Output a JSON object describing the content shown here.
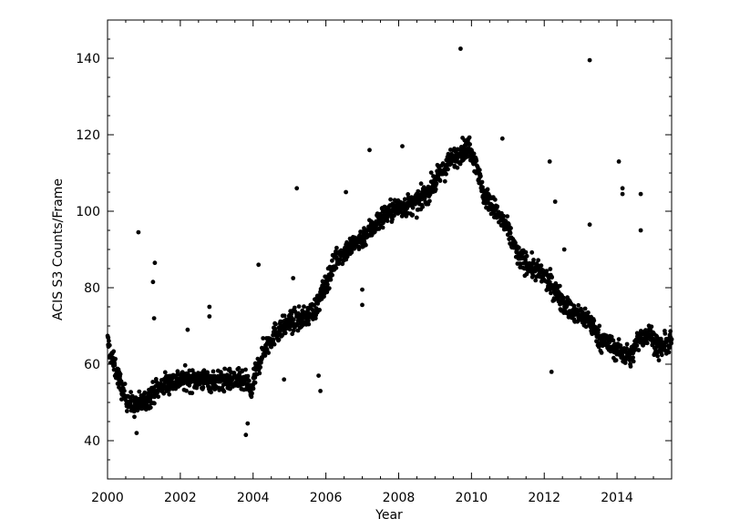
{
  "chart_data": {
    "type": "scatter",
    "title": "",
    "xlabel": "Year",
    "ylabel": "ACIS S3 Counts/Frame",
    "xlim": [
      2000,
      2015.5
    ],
    "ylim": [
      30,
      150
    ],
    "x_ticks": [
      2000,
      2002,
      2004,
      2006,
      2008,
      2010,
      2012,
      2014
    ],
    "y_ticks": [
      40,
      60,
      80,
      100,
      120,
      140
    ],
    "x_tick_labels": [
      "2000",
      "2002",
      "2004",
      "2006",
      "2008",
      "2010",
      "2012",
      "2014"
    ],
    "y_tick_labels": [
      "40",
      "60",
      "80",
      "100",
      "120",
      "140"
    ],
    "grid": false,
    "legend": "none",
    "point_color": "#000000",
    "trend": [
      [
        2000.0,
        66
      ],
      [
        2000.1,
        62
      ],
      [
        2000.25,
        58
      ],
      [
        2000.45,
        52
      ],
      [
        2000.7,
        49
      ],
      [
        2001.0,
        50
      ],
      [
        2001.3,
        53
      ],
      [
        2001.6,
        55
      ],
      [
        2002.0,
        56
      ],
      [
        2002.5,
        56
      ],
      [
        2003.0,
        55.5
      ],
      [
        2003.5,
        56
      ],
      [
        2003.85,
        55
      ],
      [
        2003.95,
        52
      ],
      [
        2004.05,
        57
      ],
      [
        2004.3,
        64
      ],
      [
        2004.6,
        68
      ],
      [
        2005.0,
        71
      ],
      [
        2005.4,
        72
      ],
      [
        2005.75,
        75
      ],
      [
        2006.0,
        81
      ],
      [
        2006.3,
        88
      ],
      [
        2006.6,
        90
      ],
      [
        2007.0,
        93
      ],
      [
        2007.3,
        96
      ],
      [
        2007.6,
        99
      ],
      [
        2008.0,
        101
      ],
      [
        2008.5,
        102
      ],
      [
        2008.8,
        105
      ],
      [
        2009.1,
        109
      ],
      [
        2009.4,
        113
      ],
      [
        2009.7,
        115.5
      ],
      [
        2009.95,
        117
      ],
      [
        2010.15,
        112
      ],
      [
        2010.3,
        105
      ],
      [
        2010.6,
        101
      ],
      [
        2011.0,
        95
      ],
      [
        2011.3,
        88
      ],
      [
        2011.7,
        85
      ],
      [
        2012.0,
        83
      ],
      [
        2012.4,
        78
      ],
      [
        2012.8,
        73
      ],
      [
        2013.2,
        72
      ],
      [
        2013.5,
        67
      ],
      [
        2013.8,
        65
      ],
      [
        2014.1,
        63
      ],
      [
        2014.4,
        62
      ],
      [
        2014.6,
        67
      ],
      [
        2014.9,
        68
      ],
      [
        2015.15,
        64
      ],
      [
        2015.5,
        66
      ]
    ],
    "outliers": [
      [
        2000.85,
        94.5
      ],
      [
        2001.3,
        86.5
      ],
      [
        2001.25,
        81.5
      ],
      [
        2001.28,
        72
      ],
      [
        2002.2,
        69
      ],
      [
        2002.8,
        75
      ],
      [
        2002.8,
        72.5
      ],
      [
        2004.15,
        86
      ],
      [
        2005.2,
        106
      ],
      [
        2005.1,
        82.5
      ],
      [
        2006.55,
        105
      ],
      [
        2007.2,
        116
      ],
      [
        2008.1,
        117
      ],
      [
        2009.7,
        142.5
      ],
      [
        2010.85,
        119
      ],
      [
        2012.15,
        113
      ],
      [
        2012.3,
        102.5
      ],
      [
        2012.55,
        90
      ],
      [
        2012.2,
        58
      ],
      [
        2013.25,
        139.5
      ],
      [
        2013.25,
        96.5
      ],
      [
        2014.05,
        113
      ],
      [
        2014.15,
        106
      ],
      [
        2014.15,
        104.5
      ],
      [
        2014.65,
        104.5
      ],
      [
        2014.65,
        95
      ],
      [
        2000.8,
        42
      ],
      [
        2003.8,
        41.5
      ],
      [
        2003.85,
        44.5
      ],
      [
        2005.85,
        53
      ],
      [
        2005.8,
        57
      ],
      [
        2007.0,
        75.5
      ],
      [
        2007.0,
        79.5
      ],
      [
        2004.85,
        56
      ]
    ],
    "n_points": 2100
  }
}
